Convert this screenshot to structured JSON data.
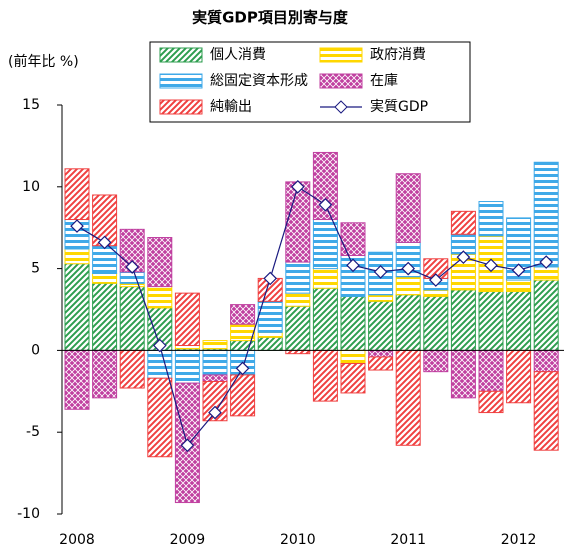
{
  "chart_data": {
    "type": "bar",
    "title": "実質GDP項目別寄与度",
    "y_label": "(前年比 %)",
    "categories": [
      "2008",
      null,
      null,
      null,
      "2009",
      null,
      null,
      null,
      "2010",
      null,
      null,
      null,
      "2011",
      null,
      null,
      null,
      "2012",
      null
    ],
    "ylim": [
      -10,
      15
    ],
    "yticks": [
      -10,
      -5,
      0,
      5,
      10,
      15
    ],
    "series": [
      {
        "name": "個人消費",
        "color": "#2e9e4f",
        "values": [
          5.3,
          4.1,
          3.9,
          2.6,
          0.1,
          0.1,
          0.6,
          0.8,
          2.7,
          3.8,
          3.3,
          3.0,
          3.4,
          3.3,
          3.7,
          3.6,
          3.6,
          4.3
        ]
      },
      {
        "name": "政府消費",
        "color": "#ffd700",
        "values": [
          0.9,
          0.6,
          0.2,
          1.3,
          0.2,
          0.5,
          1.0,
          0.3,
          0.8,
          1.2,
          -0.8,
          0.4,
          1.1,
          0.4,
          2.2,
          3.4,
          0.7,
          0.8
        ]
      },
      {
        "name": "総固定資本形成",
        "color": "#3fa9e8",
        "values": [
          1.8,
          1.7,
          0.7,
          -1.7,
          -2.0,
          -1.5,
          -1.5,
          1.9,
          1.9,
          3.0,
          2.5,
          2.6,
          2.1,
          0.7,
          1.2,
          2.1,
          3.8,
          6.4
        ]
      },
      {
        "name": "在庫",
        "color": "#c040a0",
        "values": [
          -3.6,
          -2.9,
          2.6,
          3.0,
          -7.3,
          -0.4,
          1.2,
          0,
          4.9,
          4.1,
          2.0,
          -0.4,
          4.2,
          -1.3,
          -2.9,
          -2.5,
          0,
          -1.3
        ]
      },
      {
        "name": "純輸出",
        "color": "#f04040",
        "values": [
          3.1,
          3.1,
          -2.3,
          -4.8,
          3.2,
          -2.4,
          -2.5,
          1.4,
          -0.2,
          -3.1,
          -1.8,
          -0.8,
          -5.8,
          1.2,
          1.4,
          -1.3,
          -3.2,
          -4.8
        ]
      }
    ],
    "line_series": {
      "name": "実質GDP",
      "color": "#1a1a80",
      "values": [
        7.6,
        6.6,
        5.1,
        0.3,
        -5.8,
        -3.8,
        -1.1,
        4.4,
        10.0,
        8.9,
        5.2,
        4.8,
        5.0,
        4.3,
        5.7,
        5.2,
        4.9,
        5.4
      ]
    }
  }
}
